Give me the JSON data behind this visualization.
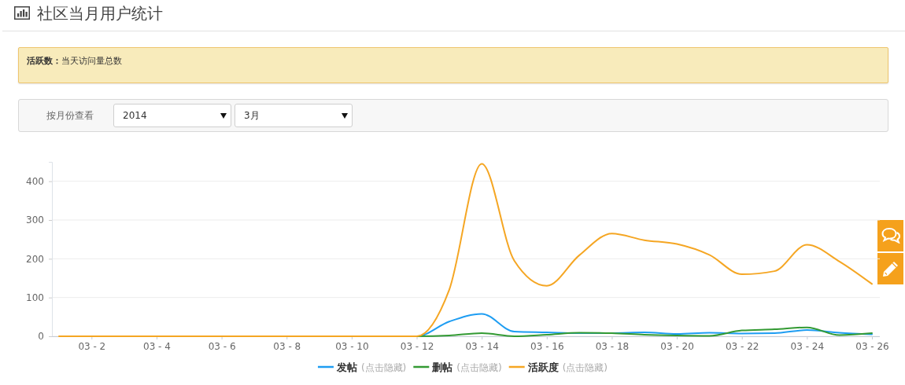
{
  "chart_data": {
    "type": "line",
    "title": "社区当月用户统计",
    "annotations": [
      "活跃数：",
      "当天访问量总数",
      "按月份查看",
      "2014",
      "3月",
      "(点击隐藏)"
    ],
    "categories": [
      null,
      "03 - 2",
      null,
      "03 - 4",
      null,
      "03 - 6",
      null,
      "03 - 8",
      null,
      "03 - 10",
      null,
      "03 - 12",
      null,
      "03 - 14",
      null,
      "03 - 16",
      null,
      "03 - 18",
      null,
      "03 - 20",
      null,
      "03 - 22",
      null,
      "03 - 24",
      null,
      "03 - 26"
    ],
    "series": [
      {
        "name": "发帖",
        "color": "#1e9df2",
        "values": [
          null,
          null,
          null,
          null,
          null,
          null,
          null,
          null,
          null,
          null,
          0,
          0,
          38,
          58,
          12,
          10,
          8,
          8,
          10,
          6,
          9,
          7,
          8,
          16,
          9,
          5
        ]
      },
      {
        "name": "删帖",
        "color": "#339a33",
        "values": [
          null,
          null,
          null,
          null,
          null,
          null,
          null,
          null,
          null,
          null,
          0,
          0,
          2,
          8,
          0,
          4,
          9,
          8,
          4,
          2,
          1,
          15,
          18,
          23,
          3,
          8
        ]
      },
      {
        "name": "活跃度",
        "color": "#f5a623",
        "values": [
          0,
          0,
          0,
          0,
          0,
          0,
          0,
          0,
          0,
          0,
          0,
          0,
          120,
          445,
          195,
          130,
          209,
          265,
          248,
          238,
          210,
          160,
          168,
          236,
          193,
          135
        ]
      }
    ],
    "ylim": [
      0,
      450
    ],
    "yticks": [
      0,
      100,
      200,
      300,
      400
    ],
    "grid": "y",
    "legend": "bottom"
  }
}
